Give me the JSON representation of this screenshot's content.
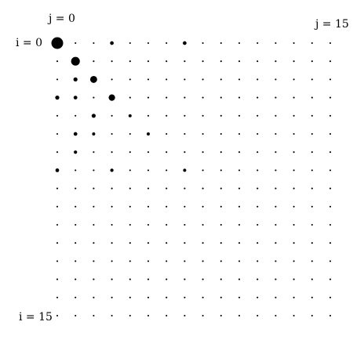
{
  "chart_data": {
    "type": "scatter",
    "title": "",
    "rows": 16,
    "cols": 16,
    "labels": {
      "j_start": "j = 0",
      "j_end": "j = 15",
      "i_start": "i = 0",
      "i_end": "i = 15"
    },
    "marker_color": "#000000",
    "base_value": 0.02,
    "highlights": [
      {
        "i": 0,
        "j": 0,
        "value": 1.0
      },
      {
        "i": 1,
        "j": 1,
        "value": 0.55
      },
      {
        "i": 2,
        "j": 2,
        "value": 0.35
      },
      {
        "i": 3,
        "j": 3,
        "value": 0.3
      },
      {
        "i": 0,
        "j": 3,
        "value": 0.1
      },
      {
        "i": 0,
        "j": 7,
        "value": 0.1
      },
      {
        "i": 2,
        "j": 1,
        "value": 0.12
      },
      {
        "i": 3,
        "j": 0,
        "value": 0.12
      },
      {
        "i": 3,
        "j": 1,
        "value": 0.1
      },
      {
        "i": 4,
        "j": 2,
        "value": 0.12
      },
      {
        "i": 4,
        "j": 4,
        "value": 0.07
      },
      {
        "i": 5,
        "j": 1,
        "value": 0.1
      },
      {
        "i": 5,
        "j": 2,
        "value": 0.07
      },
      {
        "i": 5,
        "j": 5,
        "value": 0.07
      },
      {
        "i": 6,
        "j": 1,
        "value": 0.08
      },
      {
        "i": 7,
        "j": 0,
        "value": 0.1
      },
      {
        "i": 7,
        "j": 3,
        "value": 0.08
      },
      {
        "i": 7,
        "j": 7,
        "value": 0.07
      }
    ]
  }
}
